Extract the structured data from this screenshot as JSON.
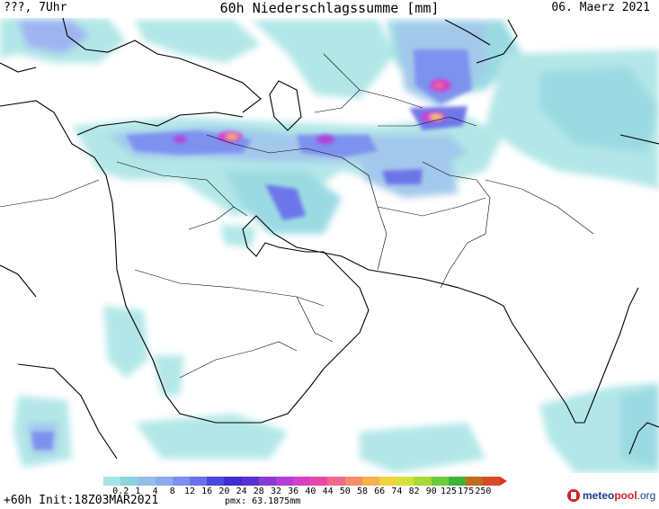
{
  "header": {
    "left": "???, 7Uhr",
    "title": "60h Niederschlagssumme [mm]",
    "date": "06. Maerz 2021"
  },
  "legend": {
    "ticks": [
      "0.2",
      "1",
      "4",
      "8",
      "12",
      "16",
      "20",
      "24",
      "28",
      "32",
      "36",
      "40",
      "44",
      "50",
      "58",
      "66",
      "74",
      "82",
      "90",
      "125",
      "175",
      "250"
    ],
    "colors": [
      "#a6e3e3",
      "#8ad4de",
      "#93bfe8",
      "#8ea8ef",
      "#7b8ff0",
      "#6a70ea",
      "#4a48e0",
      "#3d2fd4",
      "#5b2fd0",
      "#8a3bd6",
      "#b33fd8",
      "#d640c8",
      "#e64aa8",
      "#ee6a8a",
      "#f3906a",
      "#f6b050",
      "#f3d040",
      "#d6e03a",
      "#a8d83a",
      "#6ccb3a",
      "#3cb43a",
      "#c06a20",
      "#d84a2a"
    ],
    "arrow_color": "#e03020"
  },
  "footer": {
    "forecast": "+60h Init:18Z03MAR2021",
    "pmx": "pmx: 63.1875mm",
    "brand_meteo": "meteo",
    "brand_pool": "pool",
    "brand_org": ".org"
  }
}
